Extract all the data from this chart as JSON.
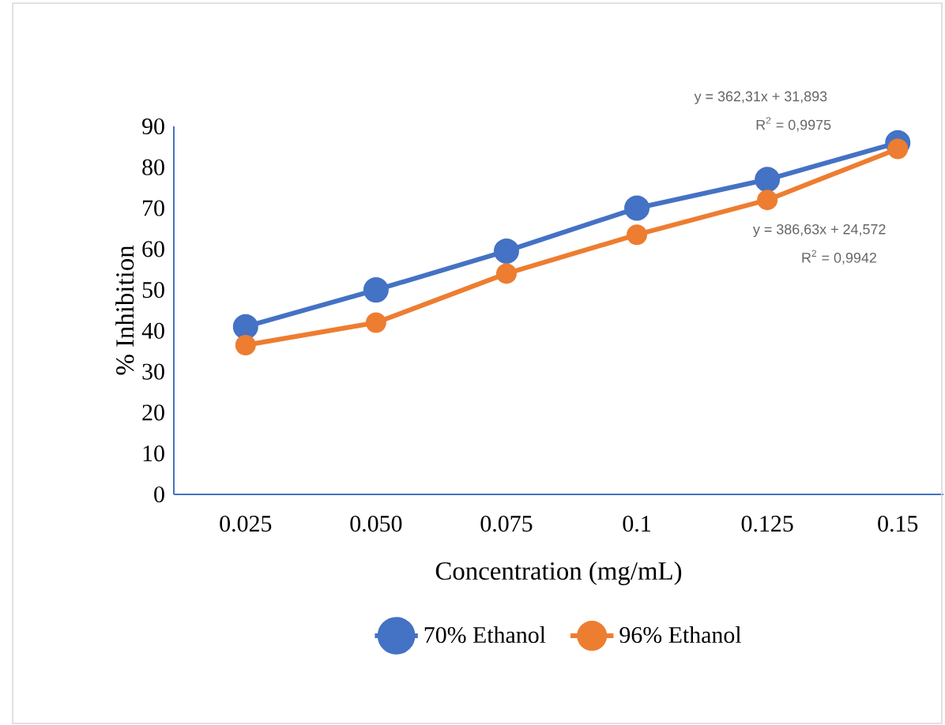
{
  "chart_data": {
    "type": "line",
    "xlabel": "Concentration (mg/mL)",
    "ylabel": "% Inhibition",
    "categories": [
      "0.025",
      "0.050",
      "0.075",
      "0.1",
      "0.125",
      "0.15"
    ],
    "series": [
      {
        "name": "70% Ethanol",
        "color": "#4472c4",
        "values": [
          41,
          50,
          59.5,
          70,
          77,
          86
        ]
      },
      {
        "name": "96% Ethanol",
        "color": "#ed7d31",
        "values": [
          36.5,
          42,
          54,
          63.5,
          72,
          84.5
        ]
      }
    ],
    "ylim": [
      0,
      90
    ],
    "yticks": [
      0,
      10,
      20,
      30,
      40,
      50,
      60,
      70,
      80,
      90
    ],
    "annotations": [
      "y = 362,31x + 31,893",
      "R$^{2}$ = 0,9975",
      "y = 386,63x + 24,572",
      "R$^{2}$ = 0,9942"
    ],
    "legend": "bottom",
    "marker": "circle",
    "line_style": "solid"
  }
}
